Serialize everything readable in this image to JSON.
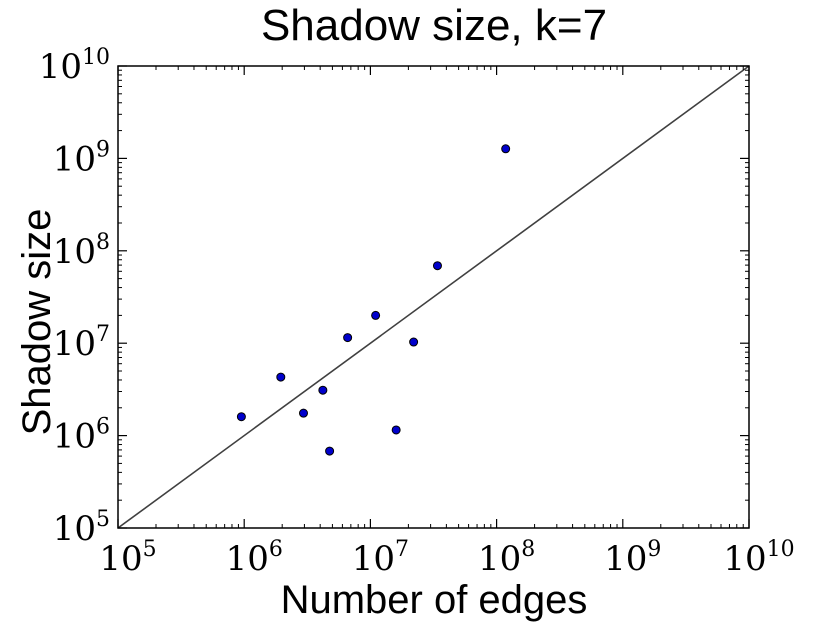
{
  "chart_data": {
    "type": "scatter",
    "title": "Shadow size, k=7",
    "xlabel": "Number of edges",
    "ylabel": "Shadow size",
    "xscale": "log",
    "yscale": "log",
    "xlim": [
      100000,
      10000000000
    ],
    "ylim": [
      100000,
      10000000000
    ],
    "grid": false,
    "x_ticks": [
      {
        "base": "10",
        "exp": "5",
        "value": 100000
      },
      {
        "base": "10",
        "exp": "6",
        "value": 1000000
      },
      {
        "base": "10",
        "exp": "7",
        "value": 10000000
      },
      {
        "base": "10",
        "exp": "8",
        "value": 100000000
      },
      {
        "base": "10",
        "exp": "9",
        "value": 1000000000
      },
      {
        "base": "10",
        "exp": "10",
        "value": 10000000000
      }
    ],
    "y_ticks": [
      {
        "base": "10",
        "exp": "5",
        "value": 100000
      },
      {
        "base": "10",
        "exp": "6",
        "value": 1000000
      },
      {
        "base": "10",
        "exp": "7",
        "value": 10000000
      },
      {
        "base": "10",
        "exp": "8",
        "value": 100000000
      },
      {
        "base": "10",
        "exp": "9",
        "value": 1000000000
      },
      {
        "base": "10",
        "exp": "10",
        "value": 10000000000
      }
    ],
    "points": [
      {
        "x": 950000,
        "y": 1600000
      },
      {
        "x": 1950000,
        "y": 4300000
      },
      {
        "x": 2950000,
        "y": 1750000
      },
      {
        "x": 4200000,
        "y": 3100000
      },
      {
        "x": 4750000,
        "y": 680000
      },
      {
        "x": 6600000,
        "y": 11500000
      },
      {
        "x": 11000000,
        "y": 20000000
      },
      {
        "x": 16000000,
        "y": 1150000
      },
      {
        "x": 22000000,
        "y": 10300000
      },
      {
        "x": 34000000,
        "y": 69000000
      },
      {
        "x": 118000000,
        "y": 1270000000
      }
    ],
    "reference_line": {
      "from": [
        100000,
        100000
      ],
      "to": [
        10000000000,
        10000000000
      ],
      "color": "#404040"
    },
    "marker_color": "#0000cc",
    "marker_edge": "#000000"
  }
}
